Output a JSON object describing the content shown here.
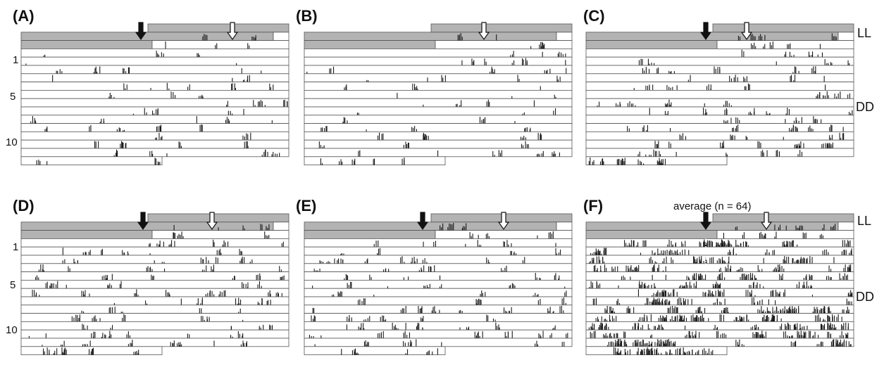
{
  "figure": {
    "panel_labels": [
      "(A)",
      "(B)",
      "(C)",
      "(D)",
      "(E)",
      "(F)"
    ],
    "left_row_labels": [
      "1",
      "5",
      "10"
    ],
    "right_condition_labels": [
      "LL",
      "DD"
    ],
    "panel_f_title": "average (n = 64)"
  },
  "colors": {
    "light_bar": "#b3b3b3",
    "activity": "#1a1a1a",
    "row_line": "#555555",
    "text": "#111111"
  },
  "chart_data": [
    {
      "panel": "(A)",
      "type": "bar",
      "plot": "double-plotted actogram",
      "light_phase_days": 2,
      "constant_dark_days": 14,
      "activity_level": "low",
      "markers": [
        "onset-filled-arrow",
        "offset-open-arrow"
      ],
      "row_labels": [
        "1",
        "5",
        "10"
      ]
    },
    {
      "panel": "(B)",
      "type": "bar",
      "plot": "double-plotted actogram",
      "light_phase_days": 2,
      "constant_dark_days": 14,
      "activity_level": "low",
      "markers": [
        "offset-open-arrow"
      ],
      "row_labels": []
    },
    {
      "panel": "(C)",
      "type": "bar",
      "plot": "double-plotted actogram",
      "light_phase_days": 2,
      "constant_dark_days": 14,
      "activity_level": "medium",
      "markers": [
        "onset-filled-arrow",
        "offset-open-arrow"
      ],
      "condition_labels": [
        "LL",
        "DD"
      ]
    },
    {
      "panel": "(D)",
      "type": "bar",
      "plot": "double-plotted actogram",
      "light_phase_days": 2,
      "constant_dark_days": 14,
      "activity_level": "medium",
      "markers": [
        "onset-filled-arrow",
        "offset-open-arrow"
      ],
      "row_labels": [
        "1",
        "5",
        "10"
      ]
    },
    {
      "panel": "(E)",
      "type": "bar",
      "plot": "double-plotted actogram",
      "light_phase_days": 2,
      "constant_dark_days": 14,
      "activity_level": "medium",
      "markers": [
        "onset-filled-arrow",
        "offset-open-arrow"
      ],
      "row_labels": []
    },
    {
      "panel": "(F)",
      "type": "bar",
      "plot": "average double-plotted actogram",
      "title": "average (n = 64)",
      "light_phase_days": 2,
      "constant_dark_days": 14,
      "activity_level": "high",
      "markers": [
        "onset-filled-arrow",
        "offset-open-arrow",
        "dotted-onset-line"
      ],
      "condition_labels": [
        "LL",
        "DD"
      ]
    }
  ]
}
